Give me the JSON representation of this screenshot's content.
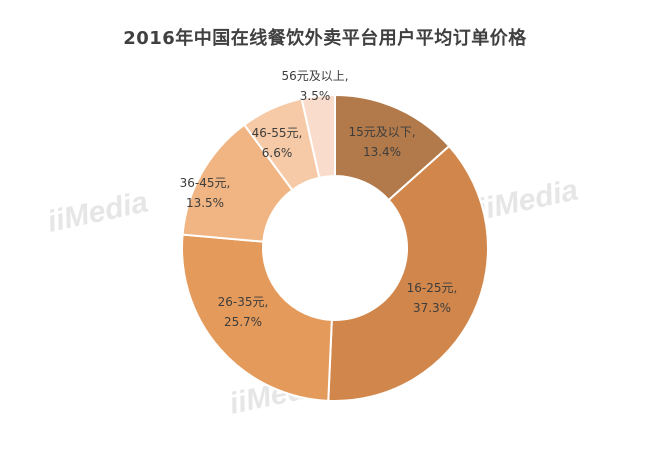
{
  "chart_data": {
    "type": "pie",
    "variant": "donut",
    "title": "2016年中国在线餐饮外卖平台用户平均订单价格",
    "legend": "none",
    "slices": [
      {
        "category": "15元及以下",
        "value": 13.4,
        "value_label": "13.4%",
        "color": "#b27a4a"
      },
      {
        "category": "16-25元",
        "value": 37.3,
        "value_label": "37.3%",
        "color": "#d1874b"
      },
      {
        "category": "26-35元",
        "value": 25.7,
        "value_label": "25.7%",
        "color": "#e49a5b"
      },
      {
        "category": "36-45元",
        "value": 13.5,
        "value_label": "13.5%",
        "color": "#f0b583"
      },
      {
        "category": "46-55元",
        "value": 6.6,
        "value_label": "6.6%",
        "color": "#f6caa6"
      },
      {
        "category": "56元及以上",
        "value": 3.5,
        "value_label": "3.5%",
        "color": "#f9dccb"
      }
    ]
  },
  "watermark": {
    "text": "iiMedia"
  }
}
